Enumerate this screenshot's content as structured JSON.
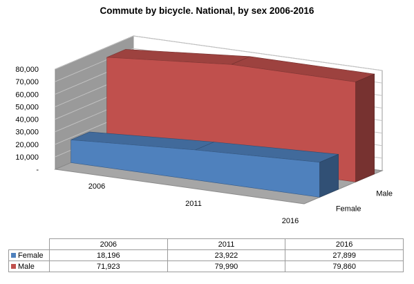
{
  "chart_data": {
    "type": "area",
    "title": "Commute by bicycle. National, by sex 2006-2016",
    "categories": [
      "2006",
      "2011",
      "2016"
    ],
    "series": [
      {
        "name": "Female",
        "values": [
          18196,
          23922,
          27899
        ],
        "color": "#4f81bd"
      },
      {
        "name": "Male",
        "values": [
          71923,
          79990,
          79860
        ],
        "color": "#c0504d"
      }
    ],
    "yticks": [
      "-",
      "10,000",
      "20,000",
      "30,000",
      "40,000",
      "50,000",
      "60,000",
      "70,000",
      "80,000"
    ],
    "ylim": [
      0,
      80000
    ],
    "grid": true,
    "data_table": {
      "header": [
        "2006",
        "2011",
        "2016"
      ],
      "rows": [
        {
          "label": "Female",
          "cells": [
            "18,196",
            "23,922",
            "27,899"
          ]
        },
        {
          "label": "Male",
          "cells": [
            "71,923",
            "79,990",
            "79,860"
          ]
        }
      ]
    }
  }
}
